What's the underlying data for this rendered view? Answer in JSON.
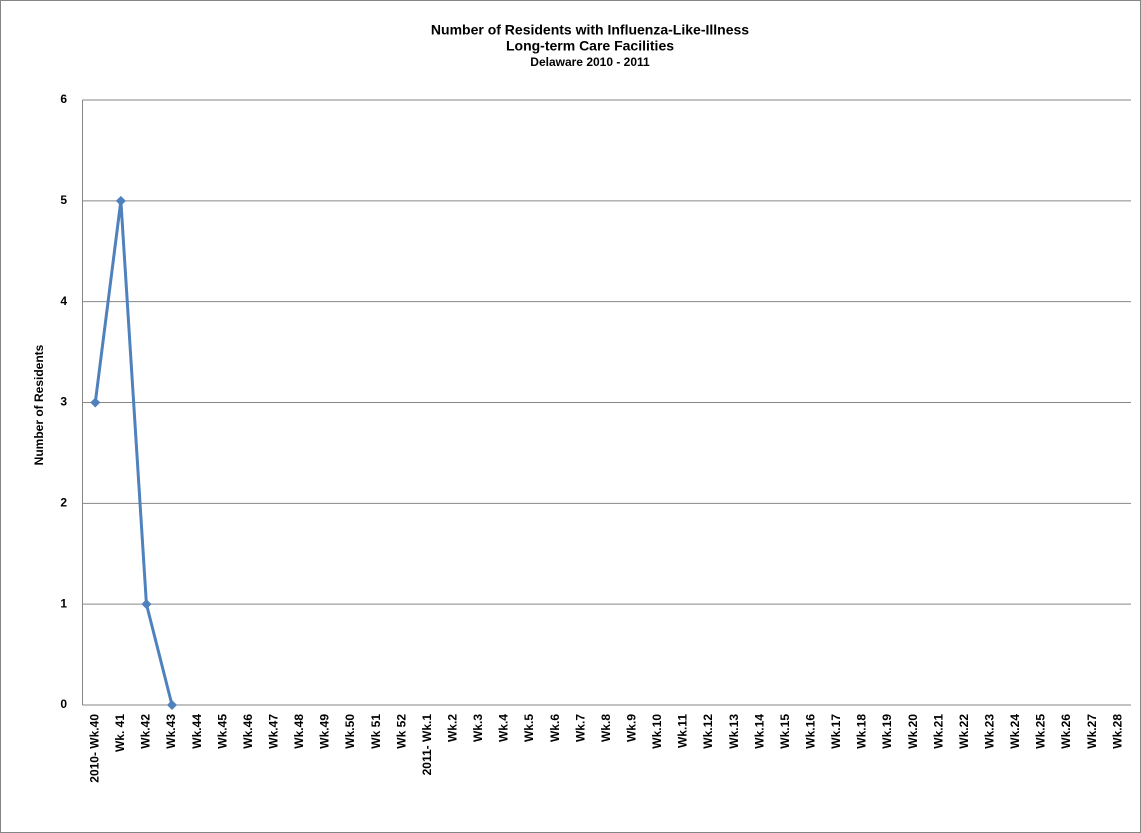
{
  "chart_data": {
    "type": "line",
    "title": "Number of Residents with Influenza-Like-Illness",
    "subtitle": [
      "Long-term Care Facilities",
      "Delaware 2010  - 2011"
    ],
    "y_label": "Number of Residents",
    "categories": [
      "2010- Wk.40",
      "Wk. 41",
      "Wk.42",
      "Wk.43",
      "Wk.44",
      "Wk.45",
      "Wk.46",
      "Wk.47",
      "Wk.48",
      "Wk.49",
      "Wk.50",
      "Wk 51",
      "Wk 52",
      "2011- Wk.1",
      "Wk.2",
      "Wk.3",
      "Wk.4",
      "Wk.5",
      "Wk.6",
      "Wk.7",
      "Wk.8",
      "Wk.9",
      "Wk.10",
      "Wk.11",
      "Wk.12",
      "Wk.13",
      "Wk.14",
      "Wk.15",
      "Wk.16",
      "Wk.17",
      "Wk.18",
      "Wk.19",
      "Wk.20",
      "Wk.21",
      "Wk.22",
      "Wk.23",
      "Wk.24",
      "Wk.25",
      "Wk.26",
      "Wk.27",
      "Wk.28"
    ],
    "values": [
      3,
      5,
      1,
      0,
      null,
      null,
      null,
      null,
      null,
      null,
      null,
      null,
      null,
      null,
      null,
      null,
      null,
      null,
      null,
      null,
      null,
      null,
      null,
      null,
      null,
      null,
      null,
      null,
      null,
      null,
      null,
      null,
      null,
      null,
      null,
      null,
      null,
      null,
      null,
      null,
      null
    ],
    "color": "#4f81bd",
    "ylim": [
      0,
      6
    ],
    "yticks": [
      0,
      1,
      2,
      3,
      4,
      5,
      6
    ],
    "grid": true
  }
}
